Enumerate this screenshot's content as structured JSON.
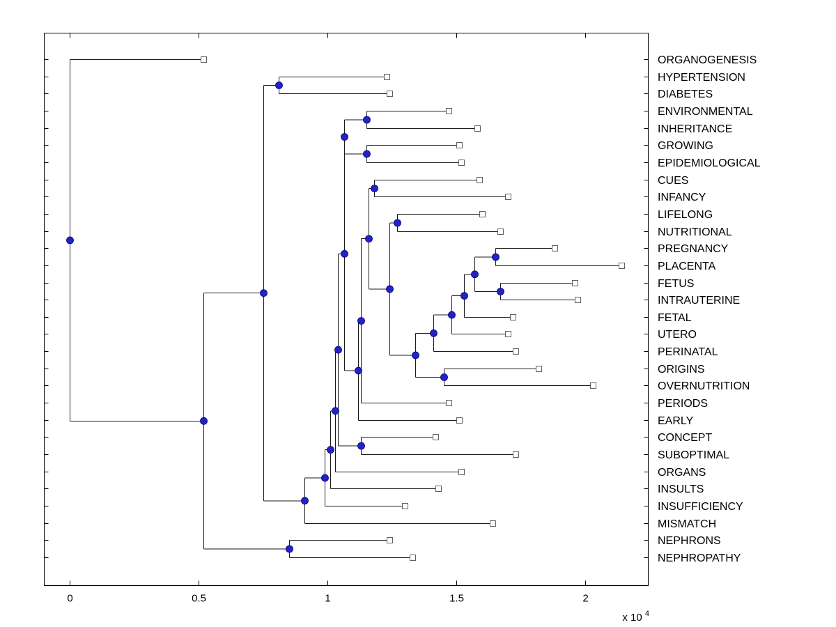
{
  "chart_data": {
    "type": "dendrogram",
    "orientation": "horizontal",
    "title": "",
    "axis": {
      "x_ticks": [
        0,
        0.5,
        1,
        1.5,
        2
      ],
      "x_tick_labels": [
        "0",
        "0.5",
        "1",
        "1.5",
        "2"
      ],
      "exponent_label": "x 10",
      "exponent": "4",
      "x_min": -0.1,
      "x_max": 2.24,
      "units": "distance x 10^4",
      "grid": false
    },
    "style": {
      "line_color": "#1a1a1a",
      "axis_color": "#000000",
      "node_fill": "#2222cc",
      "node_edge": "#000066",
      "leaf_fill": "#ffffff",
      "leaf_edge": "#606060",
      "background": "#ffffff"
    },
    "leaves": [
      "ORGANOGENESIS",
      "HYPERTENSION",
      "DIABETES",
      "ENVIRONMENTAL",
      "INHERITANCE",
      "GROWING",
      "EPIDEMIOLOGICAL",
      "CUES",
      "INFANCY",
      "LIFELONG",
      "NUTRITIONAL",
      "PREGNANCY",
      "PLACENTA",
      "FETUS",
      "INTRAUTERINE",
      "FETAL",
      "UTERO",
      "PERINATAL",
      "ORIGINS",
      "OVERNUTRITION",
      "PERIODS",
      "EARLY",
      "CONCEPT",
      "SUBOPTIMAL",
      "ORGANS",
      "INSULTS",
      "INSUFFICIENCY",
      "MISMATCH",
      "NEPHRONS",
      "NEPHROPATHY"
    ],
    "tree": {
      "h": 0.0,
      "children": [
        {
          "name": "ORGANOGENESIS",
          "h": 0.52
        },
        {
          "h": 0.52,
          "children": [
            {
              "h": 0.75,
              "children": [
                {
                  "h": 0.81,
                  "children": [
                    {
                      "name": "HYPERTENSION",
                      "h": 1.23
                    },
                    {
                      "name": "DIABETES",
                      "h": 1.24
                    }
                  ]
                },
                {
                  "h": 0.91,
                  "children": [
                    {
                      "h": 0.99,
                      "children": [
                        {
                          "h": 1.01,
                          "children": [
                            {
                              "h": 1.03,
                              "children": [
                                {
                                  "h": 1.04,
                                  "children": [
                                    {
                                      "h": 1.065,
                                      "children": [
                                        {
                                          "h": 1.065,
                                          "children": [
                                            {
                                              "h": 1.15,
                                              "children": [
                                                {
                                                  "name": "ENVIRONMENTAL",
                                                  "h": 1.47
                                                },
                                                {
                                                  "name": "INHERITANCE",
                                                  "h": 1.58
                                                }
                                              ]
                                            },
                                            {
                                              "h": 1.15,
                                              "children": [
                                                {
                                                  "name": "GROWING",
                                                  "h": 1.51
                                                },
                                                {
                                                  "name": "EPIDEMIOLOGICAL",
                                                  "h": 1.52
                                                }
                                              ]
                                            }
                                          ]
                                        },
                                        {
                                          "h": 1.12,
                                          "children": [
                                            {
                                              "h": 1.13,
                                              "children": [
                                                {
                                                  "h": 1.16,
                                                  "children": [
                                                    {
                                                      "h": 1.18,
                                                      "children": [
                                                        {
                                                          "name": "CUES",
                                                          "h": 1.59
                                                        },
                                                        {
                                                          "name": "INFANCY",
                                                          "h": 1.7
                                                        }
                                                      ]
                                                    },
                                                    {
                                                      "h": 1.24,
                                                      "children": [
                                                        {
                                                          "h": 1.27,
                                                          "children": [
                                                            {
                                                              "name": "LIFELONG",
                                                              "h": 1.6
                                                            },
                                                            {
                                                              "name": "NUTRITIONAL",
                                                              "h": 1.67
                                                            }
                                                          ]
                                                        },
                                                        {
                                                          "h": 1.34,
                                                          "children": [
                                                            {
                                                              "h": 1.41,
                                                              "children": [
                                                                {
                                                                  "h": 1.48,
                                                                  "children": [
                                                                    {
                                                                      "h": 1.53,
                                                                      "children": [
                                                                        {
                                                                          "h": 1.57,
                                                                          "children": [
                                                                            {
                                                                              "h": 1.65,
                                                                              "children": [
                                                                                {
                                                                                  "name": "PREGNANCY",
                                                                                  "h": 1.88
                                                                                },
                                                                                {
                                                                                  "name": "PLACENTA",
                                                                                  "h": 2.14
                                                                                }
                                                                              ]
                                                                            },
                                                                            {
                                                                              "h": 1.67,
                                                                              "children": [
                                                                                {
                                                                                  "name": "FETUS",
                                                                                  "h": 1.96
                                                                                },
                                                                                {
                                                                                  "name": "INTRAUTERINE",
                                                                                  "h": 1.97
                                                                                }
                                                                              ]
                                                                            }
                                                                          ]
                                                                        },
                                                                        {
                                                                          "name": "FETAL",
                                                                          "h": 1.72
                                                                        }
                                                                      ]
                                                                    },
                                                                    {
                                                                      "name": "UTERO",
                                                                      "h": 1.7
                                                                    }
                                                                  ]
                                                                },
                                                                {
                                                                  "name": "PERINATAL",
                                                                  "h": 1.73
                                                                }
                                                              ]
                                                            },
                                                            {
                                                              "h": 1.45,
                                                              "children": [
                                                                {
                                                                  "name": "ORIGINS",
                                                                  "h": 1.82
                                                                },
                                                                {
                                                                  "name": "OVERNUTRITION",
                                                                  "h": 2.03
                                                                }
                                                              ]
                                                            }
                                                          ]
                                                        }
                                                      ]
                                                    }
                                                  ]
                                                },
                                                {
                                                  "name": "PERIODS",
                                                  "h": 1.47
                                                }
                                              ]
                                            },
                                            {
                                              "name": "EARLY",
                                              "h": 1.51
                                            }
                                          ]
                                        }
                                      ]
                                    },
                                    {
                                      "h": 1.13,
                                      "children": [
                                        {
                                          "name": "CONCEPT",
                                          "h": 1.42
                                        },
                                        {
                                          "name": "SUBOPTIMAL",
                                          "h": 1.73
                                        }
                                      ]
                                    }
                                  ]
                                },
                                {
                                  "name": "ORGANS",
                                  "h": 1.52
                                }
                              ]
                            },
                            {
                              "name": "INSULTS",
                              "h": 1.43
                            }
                          ]
                        },
                        {
                          "name": "INSUFFICIENCY",
                          "h": 1.3
                        }
                      ]
                    },
                    {
                      "name": "MISMATCH",
                      "h": 1.64
                    }
                  ]
                }
              ]
            },
            {
              "h": 0.85,
              "children": [
                {
                  "name": "NEPHRONS",
                  "h": 1.24
                },
                {
                  "name": "NEPHROPATHY",
                  "h": 1.33
                }
              ]
            }
          ]
        }
      ]
    }
  }
}
